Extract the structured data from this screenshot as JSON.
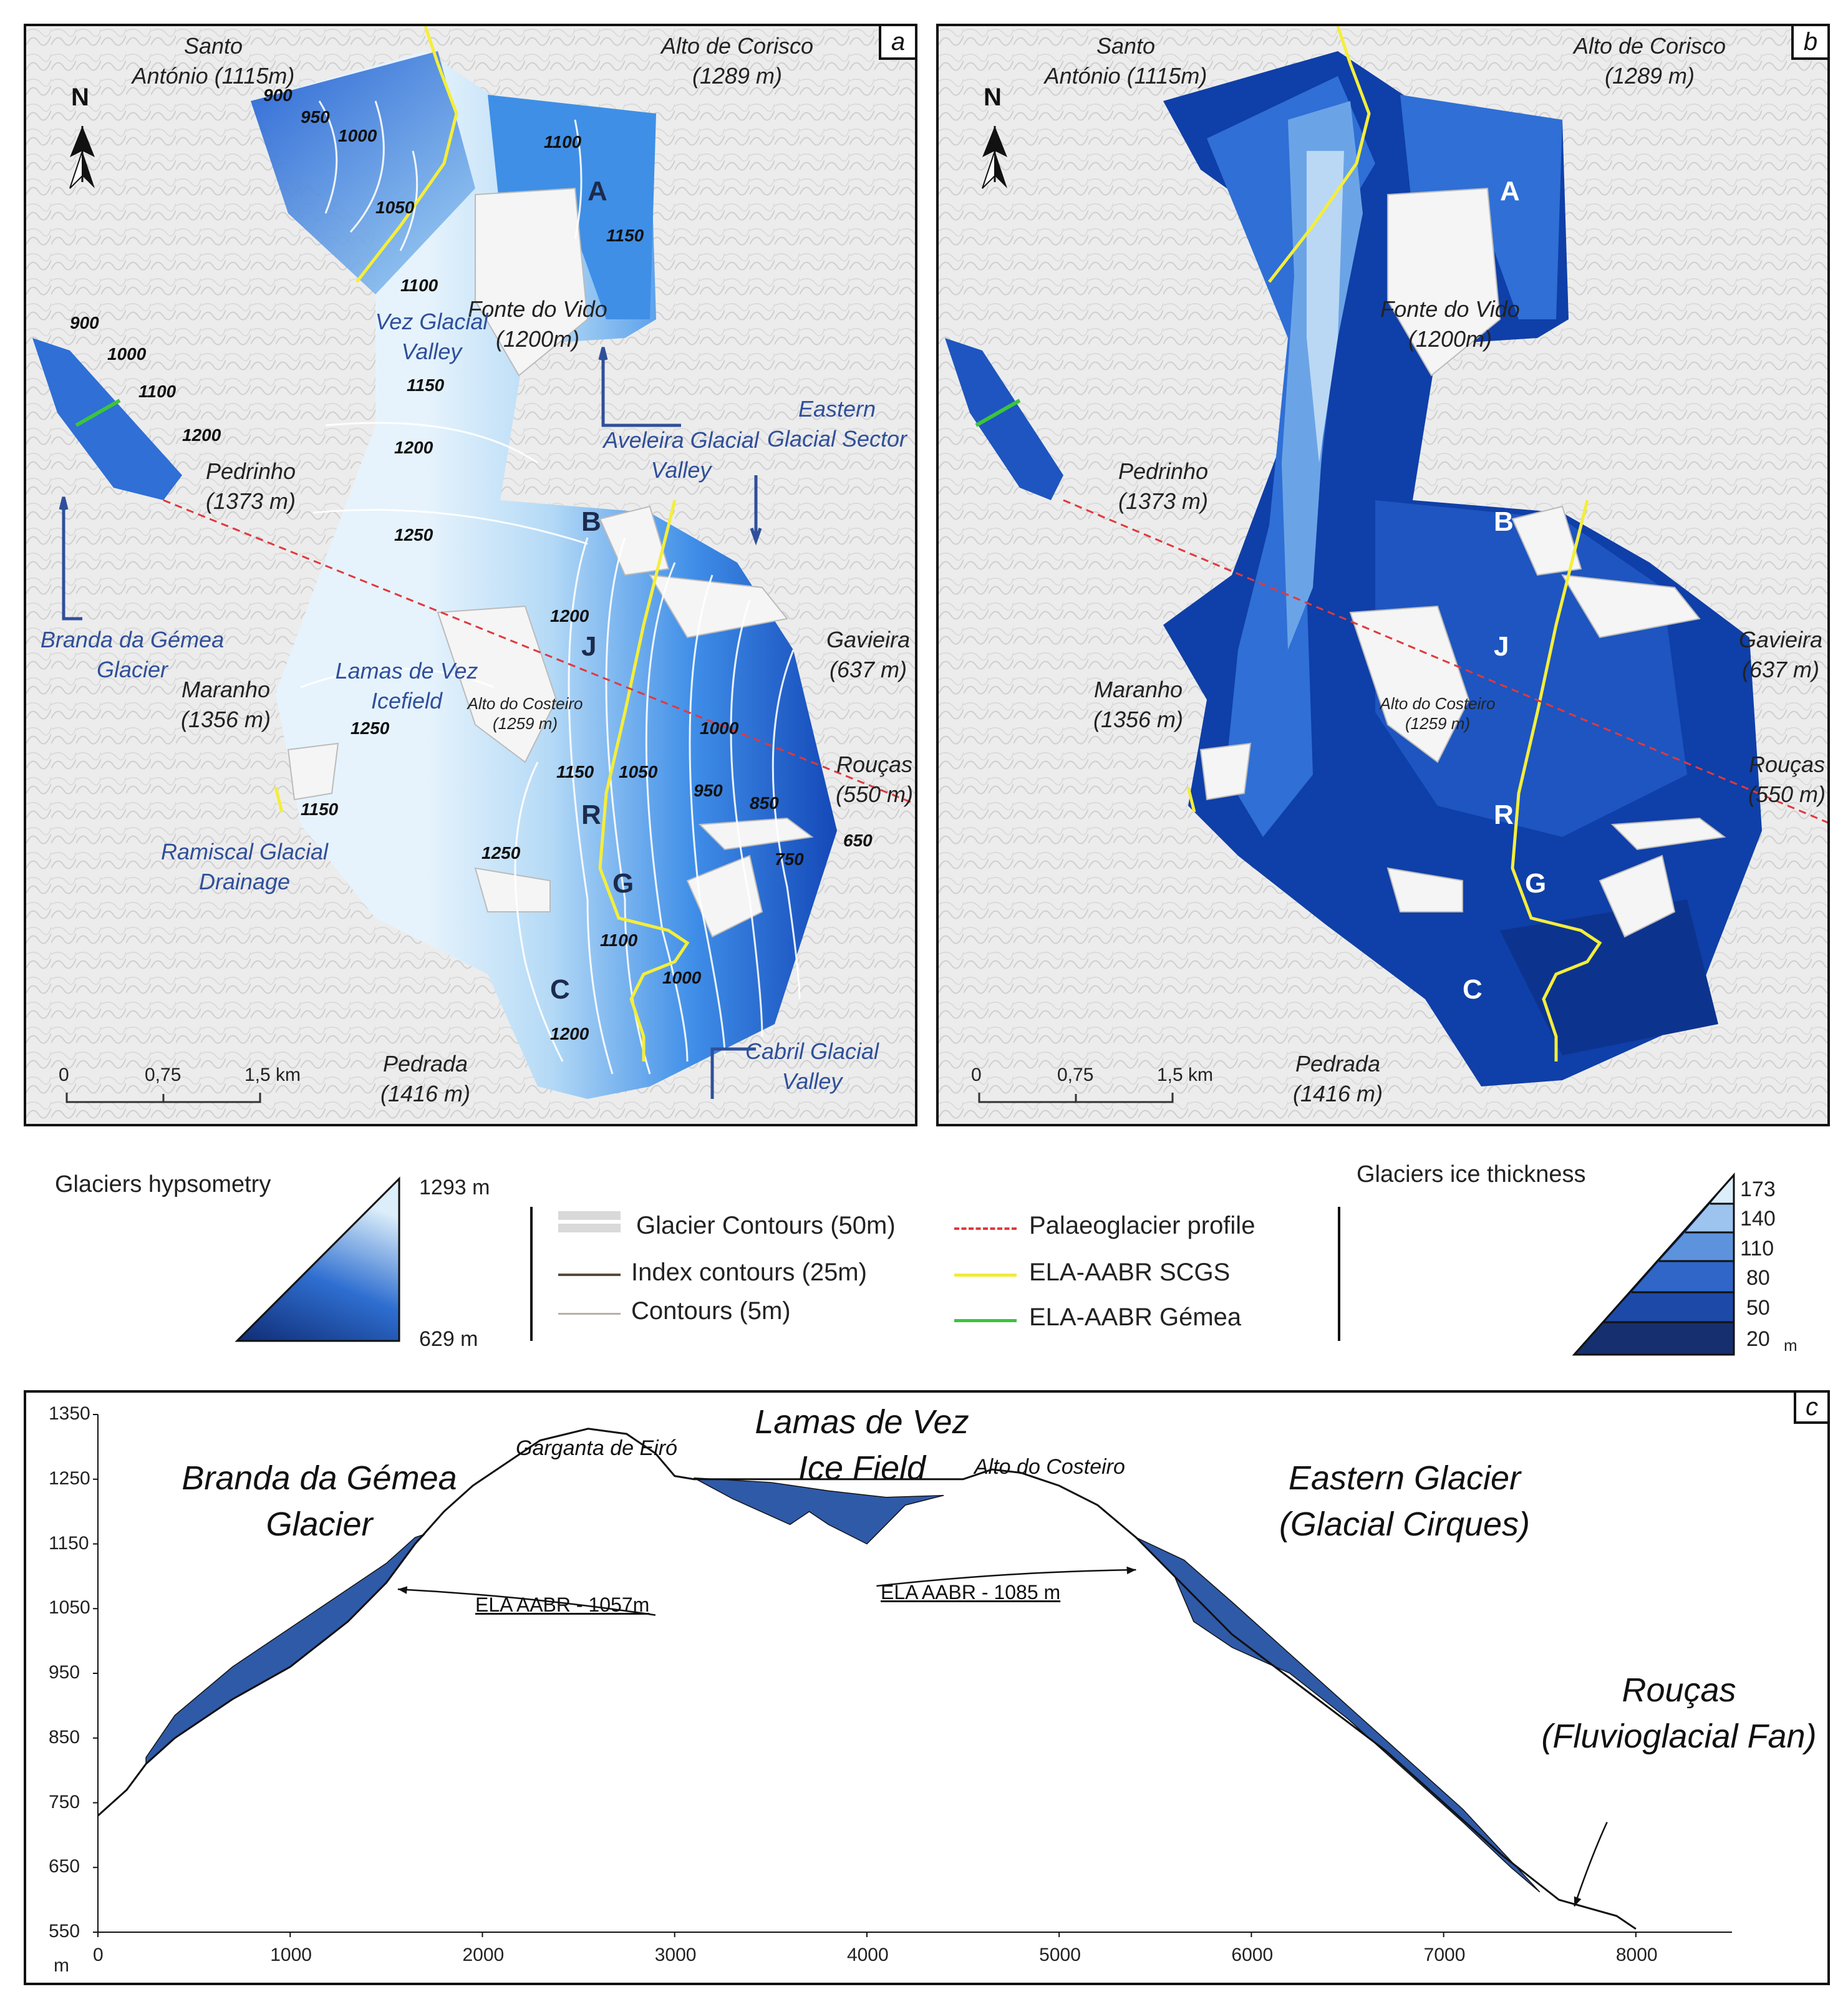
{
  "panel_a": {
    "letter": "a",
    "north": "N",
    "peaks": {
      "santo_antonio": "Santo\nAntónio (1115m)",
      "alto_corisco": "Alto de Corisco\n(1289 m)",
      "fonte_vido": "Fonte do Vido\n(1200m)",
      "pedrinho": "Pedrinho\n(1373 m)",
      "maranho": "Maranho\n(1356 m)",
      "gavieira": "Gavieira\n(637 m)",
      "roucas": "Rouças\n(550 m)",
      "pedrada": "Pedrada\n(1416 m)",
      "alto_costeiro": "Alto do Costeiro\n(1259 m)"
    },
    "features": {
      "vez_valley": "Vez Glacial\nValley",
      "lamas_icefield": "Lamas de Vez\nIcefield",
      "aveleira": "Aveleira Glacial\nValley",
      "eastern_sector": "Eastern\nGlacial Sector",
      "branda_gemea": "Branda da Gémea\nGlacier",
      "ramiscal": "Ramiscal Glacial\nDrainage",
      "cabril": "Cabril Glacial\nValley"
    },
    "letters": [
      "A",
      "B",
      "J",
      "R",
      "G",
      "C"
    ],
    "contours": [
      "900",
      "950",
      "1000",
      "1050",
      "1100",
      "1100",
      "1150",
      "1150",
      "1200",
      "1250",
      "1200",
      "1250",
      "1150",
      "1150",
      "1050",
      "1000",
      "950",
      "850",
      "650",
      "750",
      "1250",
      "1100",
      "1000",
      "1200",
      "900",
      "1000",
      "1100",
      "1200"
    ],
    "scalebar": [
      "0",
      "0,75",
      "1,5 km"
    ]
  },
  "panel_b": {
    "letter": "b",
    "north": "N",
    "peaks": {
      "santo_antonio": "Santo\nAntónio (1115m)",
      "alto_corisco": "Alto de Corisco\n(1289 m)",
      "fonte_vido": "Fonte do Vido\n(1200m)",
      "pedrinho": "Pedrinho\n(1373 m)",
      "maranho": "Maranho\n(1356 m)",
      "gavieira": "Gavieira\n(637 m)",
      "roucas": "Rouças\n(550 m)",
      "pedrada": "Pedrada\n(1416 m)",
      "alto_costeiro": "Alto do Costeiro\n(1259 m)"
    },
    "letters": [
      "A",
      "B",
      "J",
      "R",
      "G",
      "C"
    ],
    "scalebar": [
      "0",
      "0,75",
      "1,5 km"
    ]
  },
  "legend": {
    "hypsometry_title": "Glaciers hypsometry",
    "hypsometry_max": "1293 m",
    "hypsometry_min": "629 m",
    "items": {
      "glacier_contours": "Glacier Contours (50m)",
      "index_contours": "Index contours (25m)",
      "contours": "Contours (5m)",
      "profile": "Palaeoglacier profile",
      "ela_scgs": "ELA-AABR SCGS",
      "ela_gemea": "ELA-AABR Gémea"
    },
    "thickness_title": "Glaciers ice thickness",
    "thickness_classes": [
      "173",
      "140",
      "110",
      "80",
      "50",
      "20"
    ],
    "thickness_unit": "m",
    "colors": {
      "glacier_contours": "#d9d9d9",
      "index_contours": "#5a4a3a",
      "contours": "#b8b0a8",
      "profile": "#e0393e",
      "ela_scgs": "#f2ea3a",
      "ela_gemea": "#3cc43c"
    }
  },
  "chart_data": {
    "type": "area",
    "letter": "c",
    "title_labels": {
      "branda": "Branda da Gémea\nGlacier",
      "garganta": "Garganta de Eiró",
      "lamas": "Lamas de Vez\nIce Field",
      "costeiro": "Alto do Costeiro",
      "eastern": "Eastern Glacier\n(Glacial Cirques)",
      "roucas": "Rouças\n(Fluvioglacial Fan)"
    },
    "ela_labels": [
      "ELA AABR - 1057m",
      "ELA AABR - 1085 m"
    ],
    "ylabel": "m",
    "xlim": [
      0,
      8500
    ],
    "ylim": [
      550,
      1350
    ],
    "xticks": [
      "0",
      "1000",
      "2000",
      "3000",
      "4000",
      "5000",
      "6000",
      "7000",
      "8000"
    ],
    "yticks": [
      "550",
      "650",
      "750",
      "850",
      "950",
      "1050",
      "1150",
      "1250",
      "1350"
    ],
    "terrain": {
      "x": [
        0,
        150,
        250,
        400,
        700,
        1000,
        1300,
        1500,
        1650,
        1800,
        1950,
        2100,
        2300,
        2550,
        2750,
        2900,
        3000,
        3100,
        3400,
        3700,
        4000,
        4300,
        4500,
        4650,
        4800,
        5000,
        5200,
        5400,
        5600,
        5900,
        6300,
        6700,
        7000,
        7300,
        7600,
        7900,
        8000
      ],
      "y": [
        730,
        770,
        810,
        850,
        910,
        960,
        1030,
        1090,
        1150,
        1200,
        1240,
        1270,
        1310,
        1328,
        1320,
        1290,
        1255,
        1250,
        1250,
        1250,
        1250,
        1250,
        1250,
        1265,
        1260,
        1240,
        1210,
        1160,
        1100,
        1010,
        920,
        830,
        750,
        670,
        600,
        575,
        555
      ]
    },
    "ice_surface": [
      {
        "name": "Branda da Gémea",
        "x": [
          250,
          400,
          700,
          1000,
          1300,
          1500,
          1650,
          1700
        ],
        "y": [
          820,
          885,
          960,
          1020,
          1080,
          1120,
          1160,
          1165
        ]
      },
      {
        "name": "Lamas de Vez",
        "x": [
          3100,
          3500,
          3800,
          4100,
          4400
        ],
        "y": [
          1252,
          1245,
          1232,
          1222,
          1225
        ]
      },
      {
        "name": "Eastern",
        "x": [
          5400,
          5650,
          5900,
          6200,
          6500,
          6800,
          7100,
          7350,
          7500
        ],
        "y": [
          1160,
          1125,
          1060,
          980,
          900,
          820,
          740,
          660,
          612
        ]
      }
    ],
    "ice_bed": [
      {
        "x": [
          250,
          400,
          700,
          1000,
          1300,
          1500,
          1650,
          1700
        ],
        "y": [
          810,
          850,
          910,
          960,
          1030,
          1090,
          1150,
          1165
        ]
      },
      {
        "x": [
          3100,
          3300,
          3600,
          3700,
          3800,
          4000,
          4200,
          4400
        ],
        "y": [
          1252,
          1220,
          1180,
          1200,
          1180,
          1150,
          1210,
          1225
        ]
      },
      {
        "x": [
          5400,
          5600,
          5700,
          5900,
          6200,
          6500,
          6800,
          7100,
          7350,
          7500
        ],
        "y": [
          1160,
          1100,
          1030,
          990,
          950,
          880,
          800,
          720,
          650,
          612
        ]
      }
    ]
  }
}
